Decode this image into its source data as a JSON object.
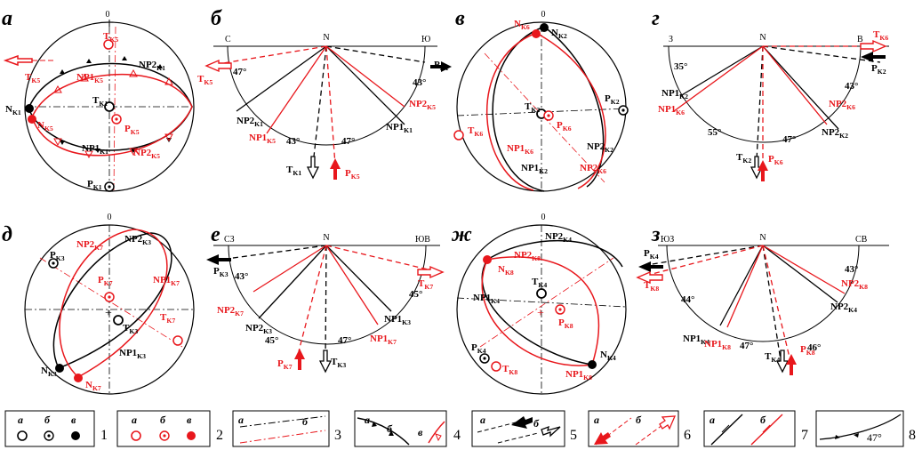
{
  "colors": {
    "black": "#000000",
    "red": "#e8171c"
  },
  "stereonets": [
    {
      "id": "a",
      "letter": "а",
      "top_tick": "0",
      "labels": [
        {
          "name": "tk5-label",
          "text": "TK5",
          "sub": "K5",
          "base": "T",
          "color": "red"
        },
        {
          "name": "tk5-side-label",
          "text": "TK5",
          "sub": "K5",
          "base": "T",
          "color": "red"
        },
        {
          "name": "np2k1-label",
          "text": "NP2K1",
          "sub": "K1",
          "base": "NP2",
          "color": "black"
        },
        {
          "name": "np1k5-label",
          "text": "NP1K5",
          "sub": "K5",
          "base": "NP1",
          "color": "red"
        },
        {
          "name": "tk1-label",
          "text": "TK1",
          "sub": "K1",
          "base": "T",
          "color": "black"
        },
        {
          "name": "nk1-label",
          "text": "NK1",
          "sub": "K1",
          "base": "N",
          "color": "black"
        },
        {
          "name": "nk5-label",
          "text": "NK5",
          "sub": "K5",
          "base": "N",
          "color": "red"
        },
        {
          "name": "pk5-label",
          "text": "PK5",
          "sub": "K5",
          "base": "P",
          "color": "red"
        },
        {
          "name": "np1k1-label",
          "text": "NP1K1",
          "sub": "K1",
          "base": "NP1",
          "color": "black"
        },
        {
          "name": "np2k5-label",
          "text": "NP2K5",
          "sub": "K5",
          "base": "NP2",
          "color": "red"
        },
        {
          "name": "pk1-label",
          "text": "PK1",
          "sub": "K1",
          "base": "P",
          "color": "black"
        }
      ]
    },
    {
      "id": "v",
      "letter": "в",
      "top_tick": "0",
      "labels": [
        {
          "name": "nk6-label",
          "text": "NK6",
          "sub": "K6",
          "base": "N",
          "color": "red"
        },
        {
          "name": "nk2-label",
          "text": "NK2",
          "sub": "K2",
          "base": "N",
          "color": "black"
        },
        {
          "name": "tk2-label",
          "text": "TK2",
          "sub": "K2",
          "base": "T",
          "color": "black"
        },
        {
          "name": "pk2-label",
          "text": "PK2",
          "sub": "K2",
          "base": "P",
          "color": "black"
        },
        {
          "name": "tk6-label",
          "text": "TK6",
          "sub": "K6",
          "base": "T",
          "color": "red"
        },
        {
          "name": "pk6-label",
          "text": "PK6",
          "sub": "K6",
          "base": "P",
          "color": "red"
        },
        {
          "name": "np1k6-label",
          "text": "NP1K6",
          "sub": "K6",
          "base": "NP1",
          "color": "red"
        },
        {
          "name": "np1k2-label",
          "text": "NP1K2",
          "sub": "K2",
          "base": "NP1",
          "color": "black"
        },
        {
          "name": "np2k2-label",
          "text": "NP2K2",
          "sub": "K2",
          "base": "NP2",
          "color": "black"
        },
        {
          "name": "np2k6-label",
          "text": "NP2K6",
          "sub": "K6",
          "base": "NP2",
          "color": "red"
        }
      ]
    },
    {
      "id": "d",
      "letter": "д",
      "top_tick": "0",
      "labels": [
        {
          "name": "pk3-label",
          "text": "PK3",
          "sub": "K3",
          "base": "P",
          "color": "black"
        },
        {
          "name": "np2k7-label",
          "text": "NP2K7",
          "sub": "K7",
          "base": "NP2",
          "color": "red"
        },
        {
          "name": "np2k3-label",
          "text": "NP2K3",
          "sub": "K3",
          "base": "NP2",
          "color": "black"
        },
        {
          "name": "pk7-label",
          "text": "PK7",
          "sub": "K7",
          "base": "P",
          "color": "red"
        },
        {
          "name": "tk3-label",
          "text": "TK3",
          "sub": "K3",
          "base": "T",
          "color": "black"
        },
        {
          "name": "np1k7-label",
          "text": "NP1K7",
          "sub": "K7",
          "base": "NP1",
          "color": "red"
        },
        {
          "name": "tk7-label",
          "text": "TK7",
          "sub": "K7",
          "base": "T",
          "color": "red"
        },
        {
          "name": "np1k3-label",
          "text": "NP1K3",
          "sub": "K3",
          "base": "NP1",
          "color": "black"
        },
        {
          "name": "nk3-label",
          "text": "NK3",
          "sub": "K3",
          "base": "N",
          "color": "black"
        },
        {
          "name": "nk7-label",
          "text": "NK7",
          "sub": "K7",
          "base": "N",
          "color": "red"
        }
      ]
    },
    {
      "id": "zh",
      "letter": "ж",
      "top_tick": "0",
      "labels": [
        {
          "name": "np2k4-label",
          "text": "NP2K4",
          "sub": "K4",
          "base": "NP2",
          "color": "black"
        },
        {
          "name": "np2k8-label",
          "text": "NP2K8",
          "sub": "K8",
          "base": "NP2",
          "color": "red"
        },
        {
          "name": "nk8-label",
          "text": "NK8",
          "sub": "K8",
          "base": "N",
          "color": "red"
        },
        {
          "name": "tk4-label",
          "text": "TK4",
          "sub": "K4",
          "base": "T",
          "color": "black"
        },
        {
          "name": "np1k4-label",
          "text": "NP1K4",
          "sub": "K4",
          "base": "NP1",
          "color": "black"
        },
        {
          "name": "pk8-label",
          "text": "PK8",
          "sub": "K8",
          "base": "P",
          "color": "red"
        },
        {
          "name": "pk4-label",
          "text": "PK4",
          "sub": "K4",
          "base": "P",
          "color": "black"
        },
        {
          "name": "nk4-label",
          "text": "NK4",
          "sub": "K4",
          "base": "N",
          "color": "black"
        },
        {
          "name": "tk8-label",
          "text": "TK8",
          "sub": "K8",
          "base": "T",
          "color": "red"
        },
        {
          "name": "np1k8-label",
          "text": "NP1K8",
          "sub": "K8",
          "base": "NP1",
          "color": "red"
        }
      ]
    }
  ],
  "sections": [
    {
      "id": "b",
      "letter": "б",
      "left_dir": "С",
      "top_dir": "N",
      "right_dir": "Ю",
      "texts": [
        {
          "name": "pk1-label",
          "base": "P",
          "sub": "K1",
          "color": "black"
        },
        {
          "name": "tk5-label",
          "base": "T",
          "sub": "K5",
          "color": "red"
        },
        {
          "name": "angle-left-label",
          "base": "47°",
          "sub": "",
          "color": "black"
        },
        {
          "name": "angle-right-label",
          "base": "43°",
          "sub": "",
          "color": "black"
        },
        {
          "name": "np2k1-label",
          "base": "NP2",
          "sub": "K1",
          "color": "black"
        },
        {
          "name": "np1k5-label",
          "base": "NP1",
          "sub": "K5",
          "color": "red"
        },
        {
          "name": "np2k5-label",
          "base": "NP2",
          "sub": "K5",
          "color": "red"
        },
        {
          "name": "np1k1-label",
          "base": "NP1",
          "sub": "K1",
          "color": "black"
        },
        {
          "name": "angle-bottom-left-label",
          "base": "43°",
          "sub": "",
          "color": "black"
        },
        {
          "name": "angle-bottom-right-label",
          "base": "47°",
          "sub": "",
          "color": "black"
        },
        {
          "name": "tk1-label",
          "base": "T",
          "sub": "K1",
          "color": "black"
        },
        {
          "name": "pk5-label",
          "base": "P",
          "sub": "K5",
          "color": "red"
        }
      ]
    },
    {
      "id": "g",
      "letter": "г",
      "left_dir": "З",
      "top_dir": "N",
      "right_dir": "В",
      "texts": [
        {
          "name": "tk6-label",
          "base": "T",
          "sub": "K6",
          "color": "red"
        },
        {
          "name": "pk2-label",
          "base": "P",
          "sub": "K2",
          "color": "black"
        },
        {
          "name": "angle-35-label",
          "base": "35°",
          "sub": "",
          "color": "black"
        },
        {
          "name": "angle-43-label",
          "base": "43°",
          "sub": "",
          "color": "black"
        },
        {
          "name": "np1k2-label",
          "base": "NP1",
          "sub": "K2",
          "color": "black"
        },
        {
          "name": "np1k6-label",
          "base": "NP1",
          "sub": "K6",
          "color": "red"
        },
        {
          "name": "np2k6-label",
          "base": "NP2",
          "sub": "K6",
          "color": "red"
        },
        {
          "name": "np2k2-label",
          "base": "NP2",
          "sub": "K2",
          "color": "black"
        },
        {
          "name": "angle-55-label",
          "base": "55°",
          "sub": "",
          "color": "black"
        },
        {
          "name": "angle-47-label",
          "base": "47°",
          "sub": "",
          "color": "black"
        },
        {
          "name": "tk2-label",
          "base": "T",
          "sub": "K2",
          "color": "black"
        },
        {
          "name": "pk6-label",
          "base": "P",
          "sub": "K6",
          "color": "red"
        }
      ]
    },
    {
      "id": "e",
      "letter": "е",
      "left_dir": "СЗ",
      "top_dir": "N",
      "right_dir": "ЮВ",
      "texts": [
        {
          "name": "pk3-label",
          "base": "P",
          "sub": "K3",
          "color": "black"
        },
        {
          "name": "tk7-label",
          "base": "T",
          "sub": "K7",
          "color": "red"
        },
        {
          "name": "angle-left-label",
          "base": "43°",
          "sub": "",
          "color": "black"
        },
        {
          "name": "angle-right-label",
          "base": "45°",
          "sub": "",
          "color": "black"
        },
        {
          "name": "np2k7-label",
          "base": "NP2",
          "sub": "K7",
          "color": "red"
        },
        {
          "name": "np2k3-label",
          "base": "NP2",
          "sub": "K3",
          "color": "black"
        },
        {
          "name": "np1k3-label",
          "base": "NP1",
          "sub": "K3",
          "color": "black"
        },
        {
          "name": "np1k7-label",
          "base": "NP1",
          "sub": "K7",
          "color": "red"
        },
        {
          "name": "angle-bottom-left-label",
          "base": "45°",
          "sub": "",
          "color": "black"
        },
        {
          "name": "angle-bottom-right-label",
          "base": "47°",
          "sub": "",
          "color": "black"
        },
        {
          "name": "pk7-label",
          "base": "P",
          "sub": "K7",
          "color": "red"
        },
        {
          "name": "tk3-label",
          "base": "T",
          "sub": "K3",
          "color": "black"
        }
      ]
    },
    {
      "id": "z",
      "letter": "з",
      "left_dir": "ЮЗ",
      "top_dir": "N",
      "right_dir": "СВ",
      "texts": [
        {
          "name": "pk4-label",
          "base": "P",
          "sub": "K4",
          "color": "black"
        },
        {
          "name": "tk8-label",
          "base": "T",
          "sub": "K8",
          "color": "red"
        },
        {
          "name": "angle-left-label",
          "base": "44°",
          "sub": "",
          "color": "black"
        },
        {
          "name": "angle-right-label",
          "base": "43°",
          "sub": "",
          "color": "black"
        },
        {
          "name": "np1k4-label",
          "base": "NP1",
          "sub": "K4",
          "color": "black"
        },
        {
          "name": "np1k8-label",
          "base": "NP1",
          "sub": "K8",
          "color": "red"
        },
        {
          "name": "np2k8-label",
          "base": "NP2",
          "sub": "K8",
          "color": "red"
        },
        {
          "name": "np2k4-label",
          "base": "NP2",
          "sub": "K4",
          "color": "black"
        },
        {
          "name": "angle-bottom-left-label",
          "base": "47°",
          "sub": "",
          "color": "black"
        },
        {
          "name": "angle-bottom-right-label",
          "base": "46°",
          "sub": "",
          "color": "black"
        },
        {
          "name": "tk4-label",
          "base": "T",
          "sub": "K4",
          "color": "black"
        },
        {
          "name": "pk8-label",
          "base": "P",
          "sub": "K8",
          "color": "red"
        }
      ]
    }
  ],
  "legend": [
    {
      "number": "1",
      "sublabels": [
        "а",
        "б",
        "в"
      ],
      "symbol": "black-points"
    },
    {
      "number": "2",
      "sublabels": [
        "а",
        "б",
        "в"
      ],
      "symbol": "red-points"
    },
    {
      "number": "3",
      "sublabels": [
        "а",
        "б"
      ],
      "symbol": "dash-dot-lines"
    },
    {
      "number": "4",
      "sublabels": [
        "а",
        "б",
        "в"
      ],
      "symbol": "toothed-arcs"
    },
    {
      "number": "5",
      "sublabels": [
        "а",
        "б"
      ],
      "symbol": "black-arrows"
    },
    {
      "number": "6",
      "sublabels": [
        "а",
        "б"
      ],
      "symbol": "red-arrows"
    },
    {
      "number": "7",
      "sublabels": [
        "а",
        "б"
      ],
      "symbol": "half-arrow-lines"
    },
    {
      "number": "8",
      "sublabels": [],
      "symbol": "angle-arc",
      "text": "47°"
    }
  ]
}
